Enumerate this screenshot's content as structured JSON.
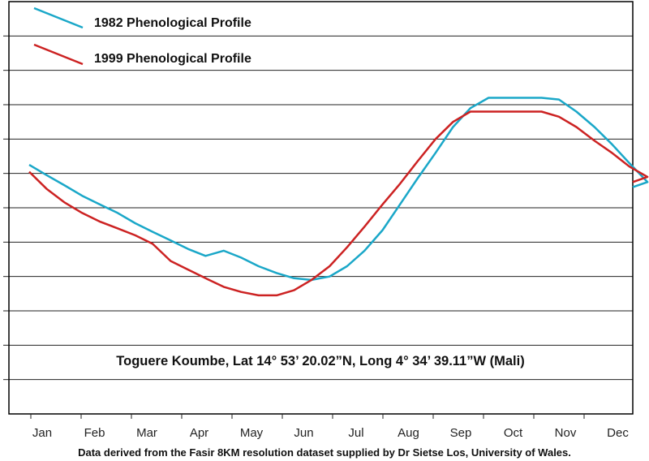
{
  "chart_data": {
    "type": "line",
    "months": [
      "Jan",
      "Feb",
      "Mar",
      "Apr",
      "May",
      "Jun",
      "Jul",
      "Aug",
      "Sep",
      "Oct",
      "Nov",
      "Dec"
    ],
    "grid": true,
    "legend_position": "top-left",
    "annotation": "Toguere Koumbe, Lat 14° 53’ 20.02”N, Long 4° 34’ 39.11”W (Mali)",
    "source_note": "Data derived from the Fasir 8KM resolution dataset supplied by Dr Sietse Los, University of Wales.",
    "ylim": [
      0,
      12
    ],
    "x": [
      0,
      0.33,
      0.67,
      1,
      1.33,
      1.67,
      2,
      2.33,
      2.67,
      3,
      3.33,
      3.67,
      4,
      4.33,
      4.67,
      5,
      5.33,
      5.67,
      6,
      6.33,
      6.67,
      7,
      7.33,
      7.67,
      8,
      8.33,
      8.67,
      9,
      9.33,
      9.67,
      10,
      10.33,
      10.67,
      11,
      11.33,
      11.67
    ],
    "series": [
      {
        "name": "1982 Phenological Profile",
        "color": "#1aa7c8",
        "values": [
          7.25,
          6.95,
          6.65,
          6.35,
          6.1,
          5.85,
          5.55,
          5.3,
          5.05,
          4.8,
          4.6,
          4.75,
          4.55,
          4.3,
          4.1,
          3.95,
          3.9,
          4.0,
          4.3,
          4.75,
          5.35,
          6.1,
          6.85,
          7.6,
          8.35,
          8.9,
          9.2,
          9.2,
          9.2,
          9.2,
          9.15,
          8.8,
          8.35,
          7.85,
          7.3,
          6.75
        ],
        "values_note": "y in grid units"
      },
      {
        "name": "1999 Phenological Profile",
        "color": "#cc2222",
        "values": [
          7.05,
          6.55,
          6.15,
          5.85,
          5.6,
          5.4,
          5.2,
          4.95,
          4.45,
          4.2,
          3.95,
          3.7,
          3.55,
          3.45,
          3.45,
          3.6,
          3.9,
          4.3,
          4.85,
          5.45,
          6.1,
          6.7,
          7.35,
          8.0,
          8.5,
          8.8,
          8.8,
          8.8,
          8.8,
          8.8,
          8.65,
          8.35,
          7.95,
          7.6,
          7.2,
          6.9
        ]
      }
    ]
  }
}
